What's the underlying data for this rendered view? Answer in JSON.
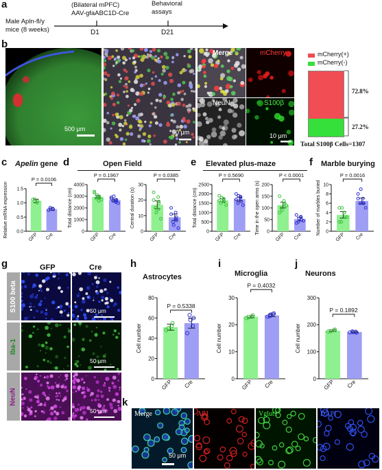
{
  "panel_a": {
    "label": "a",
    "subject": "Male Apln-fl/y mice (8 weeks)",
    "injection_line1": "(Bilateral mPFC)",
    "injection_line2": "AAV-gfaABC1D-Cre",
    "behavior_line1": "Behavioral",
    "behavior_line2": "assays",
    "tick1": "D1",
    "tick2": "D21"
  },
  "panel_b": {
    "label": "b",
    "scale1": "500 μm",
    "scale2": "50 μm",
    "scale3": "10 μm",
    "merge": "Merge",
    "mcherry": "mCherry",
    "neun": "NeuN",
    "s100b": "S100β",
    "legend_pos": "mCherry(+)",
    "legend_neg": "mCherry(-)",
    "pct_pos": "72.8%",
    "pct_neg": "27.2%",
    "total": "Total S100β Cells=1307",
    "colors": {
      "pos": "#f04d55",
      "neg": "#36e03a"
    }
  },
  "panels": {
    "c": {
      "label": "c",
      "title_italic": "Apelin",
      "title_rest": " gene"
    },
    "d": {
      "label": "d",
      "title": "Open Field"
    },
    "e": {
      "label": "e",
      "title": "Elevated plus-maze"
    },
    "f": {
      "label": "f",
      "title": "Marble burying"
    },
    "g": {
      "label": "g",
      "col1": "GFP",
      "col2": "Cre",
      "row1": "S100 beta",
      "row2": "Iba-1",
      "row3": "NeuN",
      "scale": "50 μm"
    },
    "h": {
      "label": "h",
      "title": "Astrocytes"
    },
    "i": {
      "label": "i",
      "title": "Microglia"
    },
    "j": {
      "label": "j",
      "title": "Neurons"
    },
    "k": {
      "label": "k",
      "merge": "Merge",
      "apj": "APJ",
      "vglut": "Vglut1",
      "dapi": "DAPI",
      "scale": "50 μm"
    }
  },
  "colors": {
    "gfp": "#8ff08f",
    "gfp_dot": "#3fbf3f",
    "cre": "#9e9ef5",
    "cre_dot": "#2f2fd0"
  },
  "chart_data": [
    {
      "id": "c",
      "type": "bar",
      "categories": [
        "GFP",
        "Cre"
      ],
      "values": [
        1.07,
        0.78
      ],
      "errors": [
        0.06,
        0.04
      ],
      "ylabel": "Relative mRNA expression",
      "ylim": [
        0,
        1.5
      ],
      "yticks": [
        0.0,
        0.5,
        1.0,
        1.5
      ],
      "yticklabels": [
        "0.0",
        "0.5",
        "1.0",
        "1.5"
      ],
      "pvalue": "P = 0.0106",
      "points": [
        [
          1.12,
          1.0,
          1.05,
          1.13
        ],
        [
          0.74,
          0.8,
          0.77,
          0.83
        ]
      ]
    },
    {
      "id": "d1",
      "type": "bar",
      "categories": [
        "GFP",
        "Cre"
      ],
      "values": [
        2950,
        2680
      ],
      "errors": [
        110,
        90
      ],
      "ylabel": "Total distance (cm)",
      "ylim": [
        0,
        4000
      ],
      "yticks": [
        0,
        1000,
        2000,
        3000,
        4000
      ],
      "yticklabels": [
        "0",
        "1000",
        "2000",
        "3000",
        "4000"
      ],
      "pvalue": "P = 0.1967",
      "points": [
        [
          3400,
          3000,
          2900,
          2800,
          3100,
          2700,
          3300,
          2600,
          2850
        ],
        [
          2900,
          2500,
          2700,
          2600,
          3000,
          2400,
          2800,
          2650,
          2550
        ]
      ]
    },
    {
      "id": "d2",
      "type": "bar",
      "categories": [
        "GFP",
        "Cre"
      ],
      "values": [
        17,
        9
      ],
      "errors": [
        2.5,
        2
      ],
      "ylabel": "Central duration (s)",
      "ylim": [
        0,
        30
      ],
      "yticks": [
        0,
        10,
        20,
        30
      ],
      "yticklabels": [
        "0",
        "10",
        "20",
        "30"
      ],
      "pvalue": "P = 0.0385",
      "points": [
        [
          25,
          22,
          18,
          15,
          12,
          8,
          20,
          14,
          19
        ],
        [
          15,
          12,
          9,
          6,
          4,
          2,
          11,
          8,
          7
        ]
      ]
    },
    {
      "id": "e1",
      "type": "bar",
      "categories": [
        "GFP",
        "Cre"
      ],
      "values": [
        1650,
        1720
      ],
      "errors": [
        90,
        100
      ],
      "ylabel": "Total distance (cm)",
      "ylim": [
        0,
        2500
      ],
      "yticks": [
        0,
        500,
        1000,
        1500,
        2000,
        2500
      ],
      "yticklabels": [
        "0",
        "500",
        "1000",
        "1500",
        "2000",
        "2500"
      ],
      "pvalue": "P = 0.5690",
      "points": [
        [
          1900,
          1700,
          1600,
          1500,
          1800,
          1400,
          1650,
          1750
        ],
        [
          2000,
          1800,
          1600,
          1500,
          1900,
          1400,
          1700,
          1850
        ]
      ]
    },
    {
      "id": "e2",
      "type": "bar",
      "categories": [
        "GFP",
        "Cre"
      ],
      "values": [
        112,
        52
      ],
      "errors": [
        12,
        8
      ],
      "ylabel": "Time in the open arms (s)",
      "ylim": [
        0,
        200
      ],
      "yticks": [
        0,
        50,
        100,
        150,
        200
      ],
      "yticklabels": [
        "0",
        "50",
        "100",
        "150",
        "200"
      ],
      "pvalue": "P < 0.0001",
      "points": [
        [
          150,
          130,
          120,
          100,
          90,
          110,
          80,
          115
        ],
        [
          70,
          60,
          50,
          40,
          55,
          45,
          35,
          62
        ]
      ]
    },
    {
      "id": "f",
      "type": "bar",
      "categories": [
        "GFP",
        "Cre"
      ],
      "values": [
        3.5,
        6.5
      ],
      "errors": [
        0.7,
        0.6
      ],
      "ylabel": "Number of marbles buried",
      "ylim": [
        0,
        10
      ],
      "yticks": [
        0,
        2,
        4,
        6,
        8,
        10
      ],
      "yticklabels": [
        "0",
        "2",
        "4",
        "6",
        "8",
        "10"
      ],
      "pvalue": "P = 0.0016",
      "points": [
        [
          5,
          4,
          3,
          2,
          5,
          3,
          2,
          4
        ],
        [
          8,
          7,
          6,
          6,
          9,
          5,
          7,
          6
        ]
      ]
    },
    {
      "id": "h",
      "type": "bar",
      "categories": [
        "GFP",
        "Cre"
      ],
      "values": [
        51,
        55
      ],
      "errors": [
        3,
        5
      ],
      "ylabel": "Cell number",
      "ylim": [
        0,
        80
      ],
      "yticks": [
        0,
        20,
        40,
        60,
        80
      ],
      "yticklabels": [
        "0",
        "20",
        "40",
        "60",
        "80"
      ],
      "pvalue": "P = 0.5338",
      "points": [
        [
          48,
          52,
          55,
          50
        ],
        [
          45,
          52,
          60,
          63,
          58
        ]
      ]
    },
    {
      "id": "i",
      "type": "bar",
      "categories": [
        "GFP",
        "Cre"
      ],
      "values": [
        23,
        23.5
      ],
      "errors": [
        0.4,
        0.5
      ],
      "ylabel": "Cell number",
      "ylim": [
        0,
        30
      ],
      "yticks": [
        0,
        10,
        20,
        30
      ],
      "yticklabels": [
        "0",
        "10",
        "20",
        "30"
      ],
      "pvalue": "P = 0.4032",
      "points": [
        [
          22.5,
          23,
          23.5,
          22.8
        ],
        [
          23,
          24,
          24.2,
          23.2,
          23.8
        ]
      ]
    },
    {
      "id": "j",
      "type": "bar",
      "categories": [
        "GFP",
        "Cre"
      ],
      "values": [
        178,
        173
      ],
      "errors": [
        3,
        2
      ],
      "ylabel": "Cell number",
      "ylim": [
        0,
        300
      ],
      "yticks": [
        0,
        100,
        200,
        300
      ],
      "yticklabels": [
        "0",
        "100",
        "200",
        "300"
      ],
      "pvalue": "P = 0.1892",
      "points": [
        [
          175,
          180,
          182,
          176
        ],
        [
          172,
          174,
          171,
          175,
          173
        ]
      ]
    }
  ]
}
